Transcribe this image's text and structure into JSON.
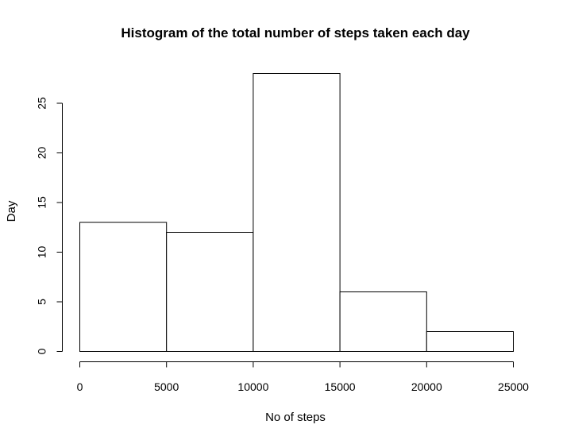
{
  "chart_data": {
    "type": "bar",
    "title": "Histogram of the total number of steps taken each day",
    "xlabel": "No of steps",
    "ylabel": "Day",
    "bins": [
      {
        "start": 0,
        "end": 5000,
        "count": 13
      },
      {
        "start": 5000,
        "end": 10000,
        "count": 12
      },
      {
        "start": 10000,
        "end": 15000,
        "count": 28
      },
      {
        "start": 15000,
        "end": 20000,
        "count": 6
      },
      {
        "start": 20000,
        "end": 25000,
        "count": 2
      }
    ],
    "x_ticks": [
      0,
      5000,
      10000,
      15000,
      20000,
      25000
    ],
    "y_ticks": [
      0,
      5,
      10,
      15,
      20,
      25
    ],
    "xlim": [
      0,
      25000
    ],
    "ylim": [
      0,
      28
    ],
    "grid": false,
    "colors": {
      "bar_fill": "#ffffff",
      "bar_stroke": "#000000"
    }
  }
}
